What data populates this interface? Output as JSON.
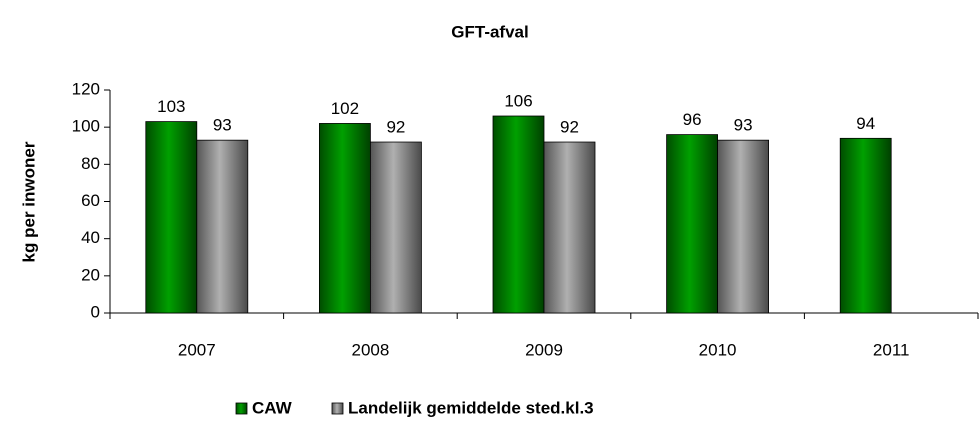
{
  "chart_data": {
    "type": "bar",
    "title": "GFT-afval",
    "y_label": "kg per inwoner",
    "categories": [
      "2007",
      "2008",
      "2009",
      "2010",
      "2011"
    ],
    "series": [
      {
        "name": "CAW",
        "color": "#008000",
        "values": [
          103,
          102,
          106,
          96,
          94
        ]
      },
      {
        "name": "Landelijk gemiddelde sted.kl.3",
        "color": "#808080",
        "values": [
          93,
          92,
          92,
          93,
          null
        ]
      }
    ],
    "ylim": [
      0,
      120
    ],
    "yticks": [
      0,
      20,
      40,
      60,
      80,
      100,
      120
    ],
    "grid": false,
    "legend": "bottom"
  }
}
